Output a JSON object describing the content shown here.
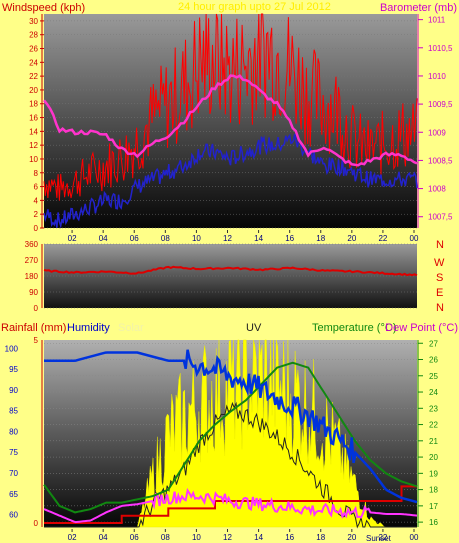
{
  "colors": {
    "background": "#ffff88",
    "wind": "#ff0000",
    "gust": "#2222cc",
    "barometer": "#ff33cc",
    "direction": "#dd0000",
    "rainfall": "#dd0000",
    "humidity": "#0033dd",
    "solar": "#ffff00",
    "temperature": "#118811",
    "dewpoint": "#ff33ff",
    "uv": "#222222",
    "axis_left": "#cc0000",
    "axis_right": "#cc00cc"
  },
  "header": {
    "windspeed_label": "Windspeed (kph)",
    "date_label": "24 hour graph upto 27 Jul 2012",
    "barometer_label": "Barometer (mb)"
  },
  "compass": [
    "N",
    "W",
    "S",
    "E",
    "N"
  ],
  "bottom_header": {
    "rainfall_label": "Rainfall (mm)",
    "humidity_label": "Humidity",
    "solar_label": "Solar",
    "uv_label": "UV",
    "temperature_label": "Temperature (°C)",
    "dewpoint_label": "Dew Point (°C)"
  },
  "sun_labels": {
    "sunset": "Sunset"
  },
  "x_ticks": [
    "02",
    "04",
    "06",
    "08",
    "10",
    "12",
    "14",
    "16",
    "18",
    "20",
    "22",
    "00"
  ],
  "chart_data": [
    {
      "type": "line",
      "name": "wind-barometer",
      "x_hours": [
        0,
        1,
        2,
        3,
        4,
        5,
        6,
        7,
        8,
        9,
        10,
        11,
        12,
        13,
        14,
        15,
        16,
        17,
        18,
        19,
        20,
        21,
        22,
        23,
        24
      ],
      "series": [
        {
          "name": "Windspeed (kph)",
          "axis": "left",
          "values": [
            6,
            5,
            6,
            7,
            8,
            9,
            11,
            14,
            16,
            18,
            21,
            22,
            20,
            21,
            23,
            22,
            20,
            17,
            16,
            15,
            11,
            10,
            11,
            12,
            12
          ]
        },
        {
          "axis": "left",
          "values": [
            2,
            1,
            2,
            3,
            4,
            4,
            6,
            7,
            8,
            9,
            11,
            11,
            10,
            11,
            12,
            12,
            13,
            11,
            9,
            9,
            8,
            7,
            7,
            7,
            7
          ]
        },
        {
          "name": "Barometer (mb)",
          "axis": "right",
          "values": [
            1009.6,
            1009.05,
            1009.0,
            1009.0,
            1008.95,
            1008.7,
            1008.6,
            1008.8,
            1008.95,
            1009.2,
            1009.5,
            1009.8,
            1010.0,
            1009.95,
            1009.7,
            1009.5,
            1009.1,
            1008.6,
            1008.75,
            1008.55,
            1008.4,
            1008.5,
            1008.6,
            1008.6,
            1008.45
          ]
        }
      ],
      "left_axis": {
        "min": 0,
        "max": 31,
        "ticks": [
          0,
          2,
          4,
          6,
          8,
          10,
          12,
          14,
          16,
          18,
          20,
          22,
          24,
          26,
          28,
          30
        ]
      },
      "right_axis": {
        "min": 1007.3,
        "max": 1011.1,
        "ticks": [
          1007.5,
          1008,
          1008.5,
          1009,
          1009.5,
          1010,
          1010.5,
          1011
        ],
        "tick_labels": [
          "1007,5",
          "1008",
          "1008,5",
          "1009",
          "1009,5",
          "1010",
          "1010,5",
          "1011"
        ]
      }
    },
    {
      "type": "line",
      "name": "wind-direction",
      "x_hours": [
        0,
        2,
        4,
        6,
        8,
        10,
        12,
        14,
        16,
        18,
        20,
        22,
        24
      ],
      "series": [
        {
          "values": [
            210,
            200,
            205,
            195,
            230,
            220,
            225,
            215,
            225,
            210,
            205,
            195,
            185
          ]
        }
      ],
      "left_axis": {
        "min": 0,
        "max": 360,
        "ticks": [
          0,
          90,
          180,
          270,
          360
        ]
      }
    },
    {
      "type": "line",
      "name": "rain-humidity-solar-temperature",
      "x_hours": [
        0,
        1,
        2,
        3,
        4,
        5,
        6,
        7,
        8,
        9,
        10,
        11,
        12,
        13,
        14,
        15,
        16,
        17,
        18,
        19,
        20,
        21,
        22,
        23,
        24
      ],
      "series": [
        {
          "name": "Humidity",
          "axis": "left_pct",
          "values": [
            97,
            97,
            97,
            98,
            99,
            99,
            99,
            98,
            97,
            97,
            96,
            95,
            93,
            92,
            90,
            88,
            86,
            84,
            81,
            78,
            75,
            71,
            66,
            64,
            63
          ]
        },
        {
          "name": "Temperature (°C)",
          "axis": "right",
          "values": [
            18.3,
            17.0,
            16.6,
            16.8,
            17.2,
            17.2,
            17.4,
            17.6,
            18.0,
            19.5,
            21.0,
            22.0,
            22.8,
            23.5,
            24.5,
            25.5,
            25.8,
            25.5,
            24.0,
            22.5,
            21.0,
            19.8,
            19.0,
            18.5,
            18.2
          ]
        },
        {
          "name": "Dew Point (°C)",
          "axis": "right",
          "values": [
            16.8,
            16.4,
            16.0,
            16.1,
            16.6,
            17.0,
            17.1,
            17.3,
            17.5,
            17.6,
            17.6,
            17.5,
            17.3,
            17.2,
            17.1,
            17.0,
            16.9,
            16.8,
            16.7,
            16.7,
            16.6,
            16.6,
            16.5,
            16.5,
            16.4
          ]
        },
        {
          "name": "Rainfall (mm)",
          "axis": "left_rain",
          "values": [
            0,
            0,
            0,
            0,
            0,
            0.2,
            0.2,
            0.2,
            0.4,
            0.4,
            0.4,
            0.6,
            0.6,
            0.6,
            0.6,
            0.6,
            0.6,
            0.6,
            0.6,
            0.6,
            0.6,
            0.6,
            0.6,
            1.0,
            1.0
          ]
        },
        {
          "name": "Solar",
          "axis": "solar",
          "values": [
            0,
            0,
            0,
            0,
            0,
            0,
            0,
            30,
            55,
            65,
            75,
            80,
            85,
            90,
            88,
            85,
            80,
            72,
            60,
            45,
            25,
            5,
            0,
            0,
            0
          ]
        },
        {
          "name": "UV",
          "axis": "solar",
          "values": [
            0,
            0,
            0,
            0,
            0,
            0,
            0,
            12,
            20,
            30,
            45,
            55,
            62,
            60,
            55,
            48,
            40,
            30,
            20,
            10,
            3,
            0,
            0,
            0,
            0
          ]
        }
      ],
      "left_axis": {
        "min": 57,
        "max": 102,
        "ticks": [
          60,
          65,
          70,
          75,
          80,
          85,
          90,
          95,
          100
        ]
      },
      "right_axis": {
        "min": 15.7,
        "max": 27.2,
        "ticks": [
          16,
          17,
          18,
          19,
          20,
          21,
          22,
          23,
          24,
          25,
          26,
          27
        ]
      },
      "rain_axis": {
        "ticks": [
          0,
          5
        ]
      }
    }
  ]
}
